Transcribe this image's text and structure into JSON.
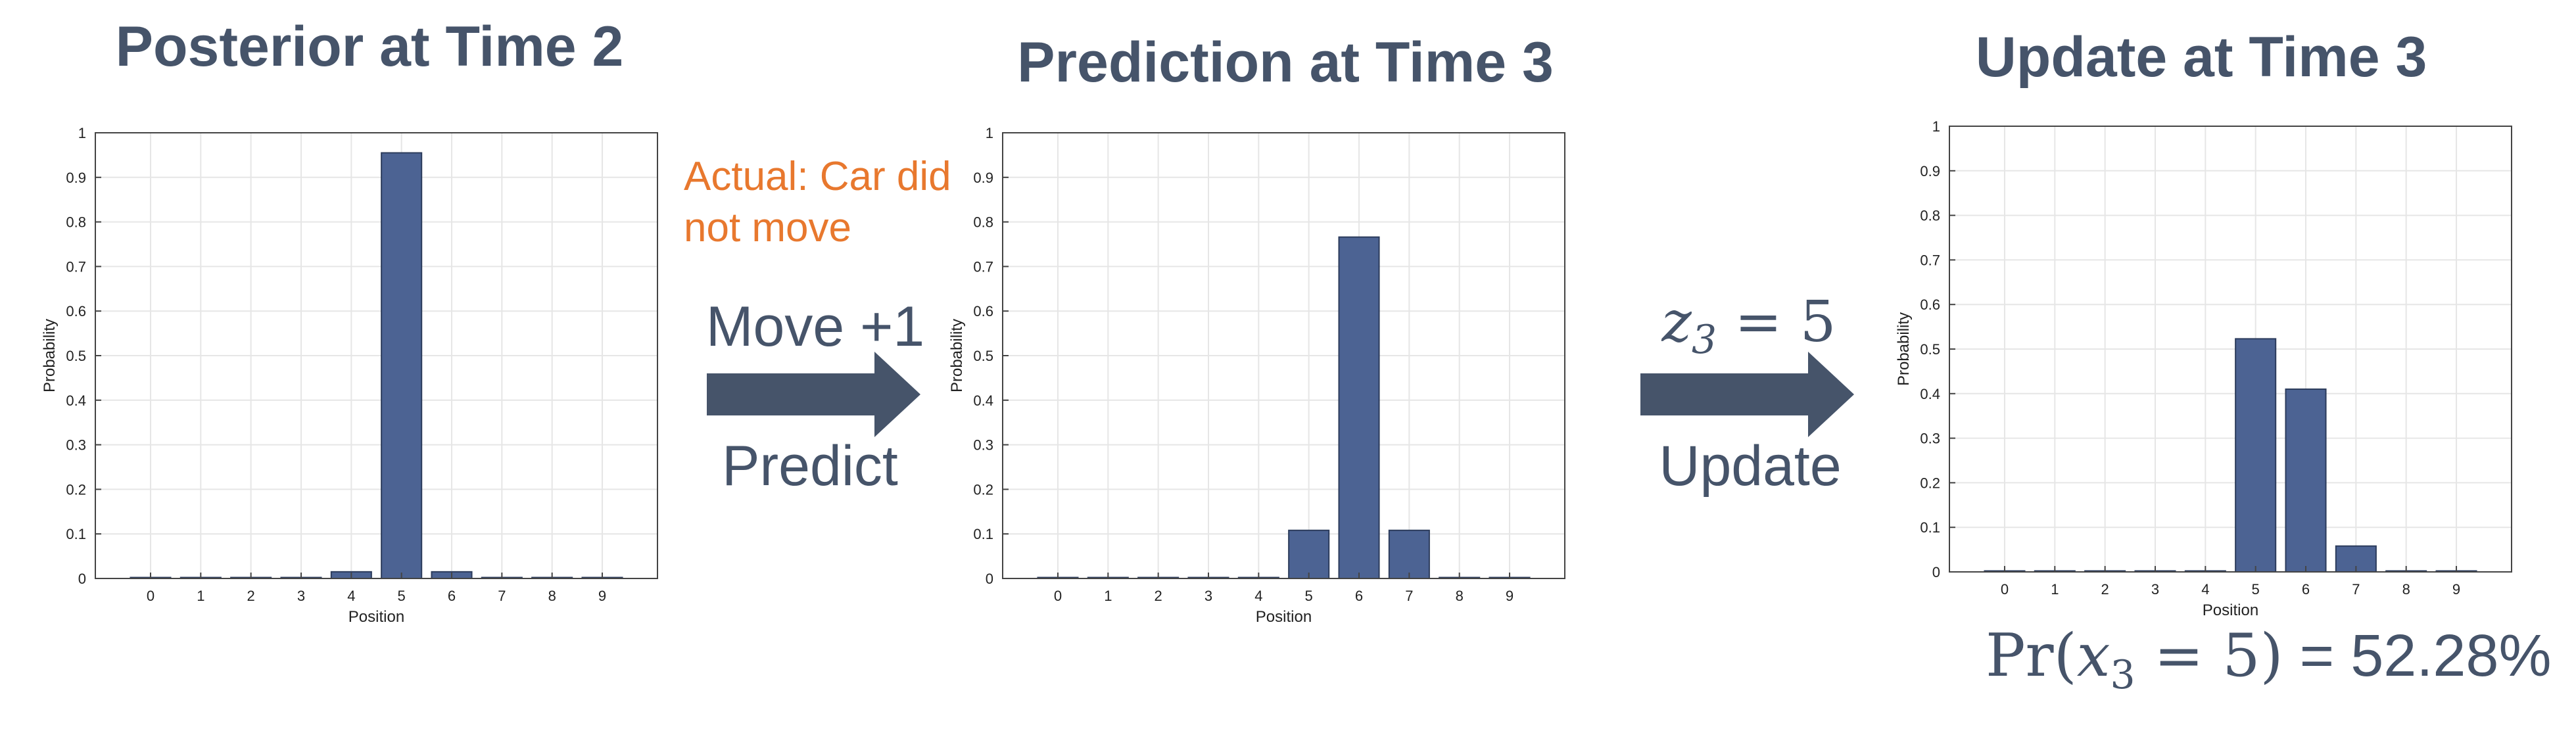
{
  "panels": [
    {
      "title": "Posterior at Time 2"
    },
    {
      "title": "Prediction at Time 3"
    },
    {
      "title": "Update at Time 3"
    }
  ],
  "transitions": [
    {
      "top_label": "Move +1",
      "bottom_label": "Predict"
    },
    {
      "top_label_var": "z",
      "top_label_sub": "3",
      "top_label_rest": " = 5",
      "bottom_label": "Update"
    }
  ],
  "note": "Actual: Car did not move",
  "result": {
    "pr": "Pr(",
    "var": "x",
    "sub": "3",
    "eq": " = 5)",
    "value": " = 52.28%"
  },
  "colors": {
    "bar": "#4c6393",
    "bar_edge": "#2c3c5c",
    "text": "#46546a",
    "note": "#e8782e",
    "arrow": "#46546a",
    "grid": "#e6e6e6"
  },
  "chart_data": [
    {
      "type": "bar",
      "title": "Posterior at Time 2",
      "xlabel": "Position",
      "ylabel": "Probability",
      "categories": [
        "0",
        "1",
        "2",
        "3",
        "4",
        "5",
        "6",
        "7",
        "8",
        "9"
      ],
      "values": [
        0.0002,
        0.0002,
        0.0002,
        0.0002,
        0.015,
        0.955,
        0.015,
        0.0002,
        0.0002,
        0.0002
      ],
      "ylim": [
        0,
        1
      ],
      "yticks": [
        "0",
        "0.1",
        "0.2",
        "0.3",
        "0.4",
        "0.5",
        "0.6",
        "0.7",
        "0.8",
        "0.9",
        "1"
      ],
      "grid": true
    },
    {
      "type": "bar",
      "title": "Prediction at Time 3",
      "xlabel": "Position",
      "ylabel": "Probability",
      "categories": [
        "0",
        "1",
        "2",
        "3",
        "4",
        "5",
        "6",
        "7",
        "8",
        "9"
      ],
      "values": [
        0.0002,
        0.0002,
        0.0002,
        0.0002,
        0.0015,
        0.108,
        0.766,
        0.108,
        0.0015,
        0.0002
      ],
      "ylim": [
        0,
        1
      ],
      "yticks": [
        "0",
        "0.1",
        "0.2",
        "0.3",
        "0.4",
        "0.5",
        "0.6",
        "0.7",
        "0.8",
        "0.9",
        "1"
      ],
      "grid": true
    },
    {
      "type": "bar",
      "title": "Update at Time 3",
      "xlabel": "Position",
      "ylabel": "Probability",
      "categories": [
        "0",
        "1",
        "2",
        "3",
        "4",
        "5",
        "6",
        "7",
        "8",
        "9"
      ],
      "values": [
        0.0002,
        0.0002,
        0.0002,
        0.0002,
        0.001,
        0.523,
        0.41,
        0.058,
        0.001,
        0.0002
      ],
      "ylim": [
        0,
        1
      ],
      "yticks": [
        "0",
        "0.1",
        "0.2",
        "0.3",
        "0.4",
        "0.5",
        "0.6",
        "0.7",
        "0.8",
        "0.9",
        "1"
      ],
      "grid": true
    }
  ]
}
